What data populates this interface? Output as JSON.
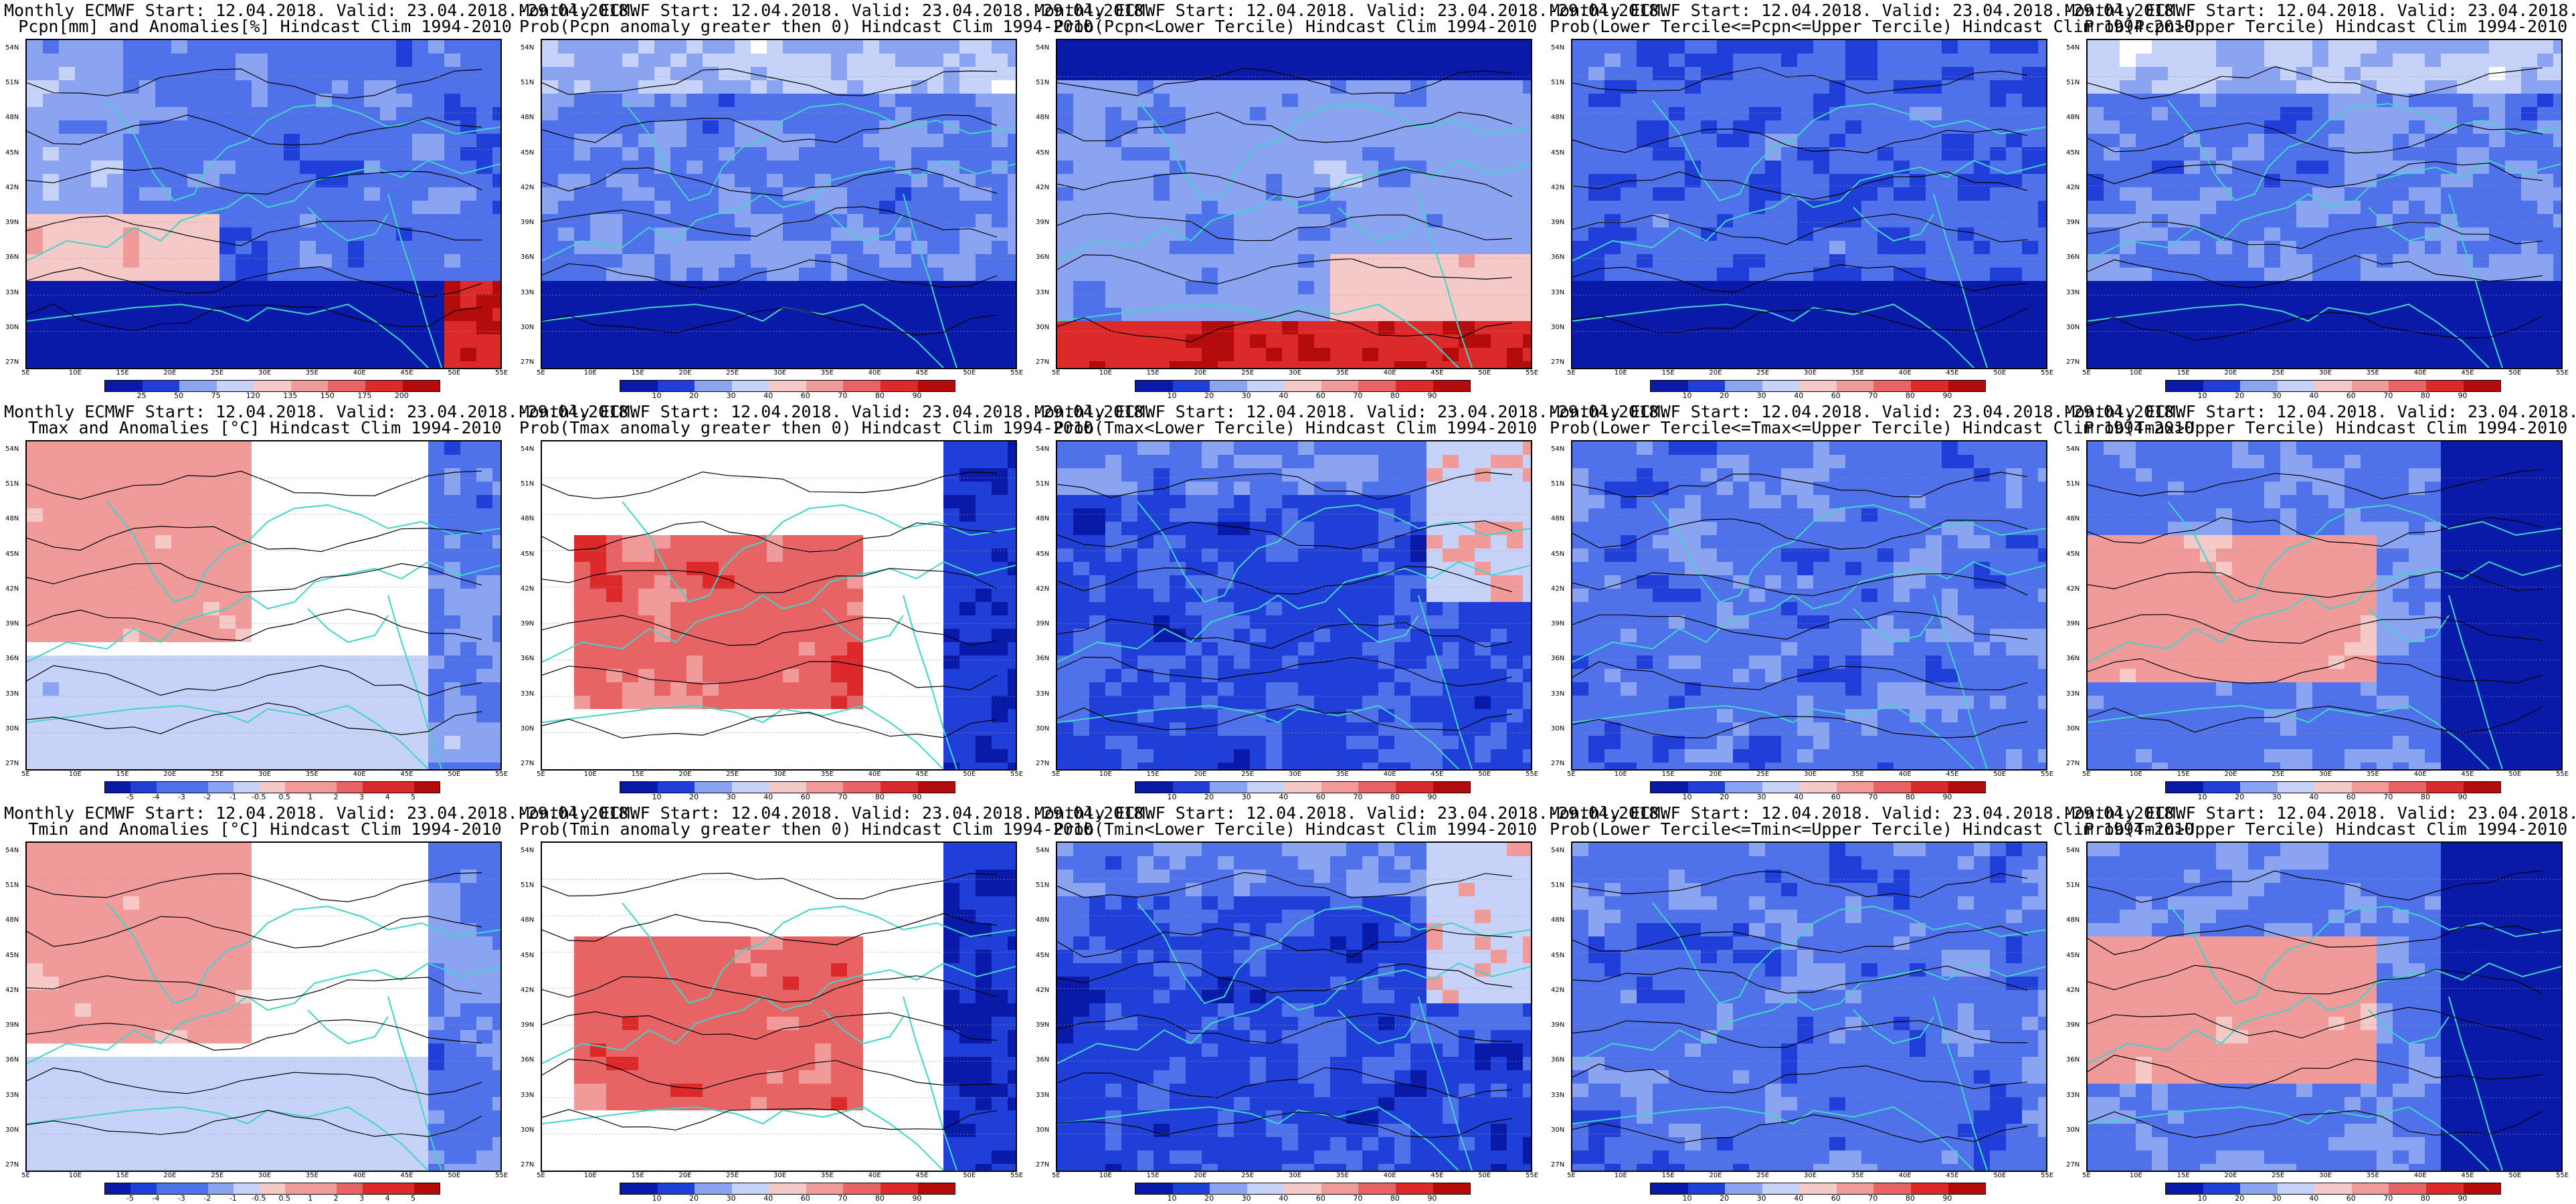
{
  "figure": {
    "title_line1": "Monthly ECMWF Start: 12.04.2018. Valid: 23.04.2018.-29.04.2018.",
    "lat_labels": [
      "54N",
      "51N",
      "48N",
      "45N",
      "42N",
      "39N",
      "36N",
      "33N",
      "30N",
      "27N"
    ],
    "lon_labels": [
      "5E",
      "10E",
      "15E",
      "20E",
      "25E",
      "30E",
      "35E",
      "40E",
      "45E",
      "50E",
      "55E"
    ],
    "colors": {
      "blues": [
        "#0a1aa8",
        "#1f3fd8",
        "#4f72ea",
        "#8aa4f2",
        "#c6d2f8"
      ],
      "reds": [
        "#f6c9c9",
        "#f09a9a",
        "#e86464",
        "#dc2a2a",
        "#b40c0c"
      ],
      "neutral": "#ffffff",
      "coast": "#3fd6c8",
      "contour": "#000000"
    },
    "colorbars": {
      "pcpn_anom": [
        "25",
        "50",
        "75",
        "120",
        "135",
        "150",
        "175",
        "200"
      ],
      "temp_anom": [
        "-5",
        "-4",
        "-3",
        "-2",
        "-1",
        "-0.5",
        "0.5",
        "1",
        "2",
        "3",
        "4",
        "5"
      ],
      "prob": [
        "10",
        "20",
        "30",
        "40",
        "60",
        "70",
        "80",
        "90"
      ]
    },
    "panels": [
      {
        "title2": "Pcpn[mm] and Anomalies[%] Hindcast Clim 1994-2010",
        "cbar": "pcpn_anom",
        "style": "pcpn_anom"
      },
      {
        "title2": "Prob(Pcpn anomaly greater then 0) Hindcast Clim 1994-2010",
        "cbar": "prob",
        "style": "pcpn_pos"
      },
      {
        "title2": "Prob(Pcpn<Lower Tercile) Hindcast Clim 1994-2010",
        "cbar": "prob",
        "style": "pcpn_low"
      },
      {
        "title2": "Prob(Lower Tercile<=Pcpn<=Upper Tercile) Hindcast Clim 1994-2010",
        "cbar": "prob",
        "style": "pcpn_mid"
      },
      {
        "title2": "Prob(Pcpn>Upper Tercile) Hindcast Clim 1994-2010",
        "cbar": "prob",
        "style": "pcpn_pos"
      },
      {
        "title2": "Tmax and Anomalies [°C] Hindcast Clim 1994-2010",
        "cbar": "temp_anom",
        "style": "t_anom"
      },
      {
        "title2": "Prob(Tmax anomaly greater then 0) Hindcast Clim 1994-2010",
        "cbar": "prob",
        "style": "t_warm"
      },
      {
        "title2": "Prob(Tmax<Lower Tercile) Hindcast Clim 1994-2010",
        "cbar": "prob",
        "style": "t_cold"
      },
      {
        "title2": "Prob(Lower Tercile<=Tmax<=Upper Tercile) Hindcast Clim 1994-2010",
        "cbar": "prob",
        "style": "t_mid"
      },
      {
        "title2": "Prob(Tmax>Upper Tercile) Hindcast Clim 1994-2010",
        "cbar": "prob",
        "style": "t_upper"
      },
      {
        "title2": "Tmin and Anomalies [°C] Hindcast Clim 1994-2010",
        "cbar": "temp_anom",
        "style": "t_anom"
      },
      {
        "title2": "Prob(Tmin anomaly greater then 0) Hindcast Clim 1994-2010",
        "cbar": "prob",
        "style": "t_warm"
      },
      {
        "title2": "Prob(Tmin<Lower Tercile) Hindcast Clim 1994-2010",
        "cbar": "prob",
        "style": "t_cold"
      },
      {
        "title2": "Prob(Lower Tercile<=Tmin<=Upper Tercile) Hindcast Clim 1994-2010",
        "cbar": "prob",
        "style": "t_mid"
      },
      {
        "title2": "Prob(Tmin>Upper Tercile) Hindcast Clim 1994-2010",
        "cbar": "prob",
        "style": "t_upper"
      }
    ]
  }
}
